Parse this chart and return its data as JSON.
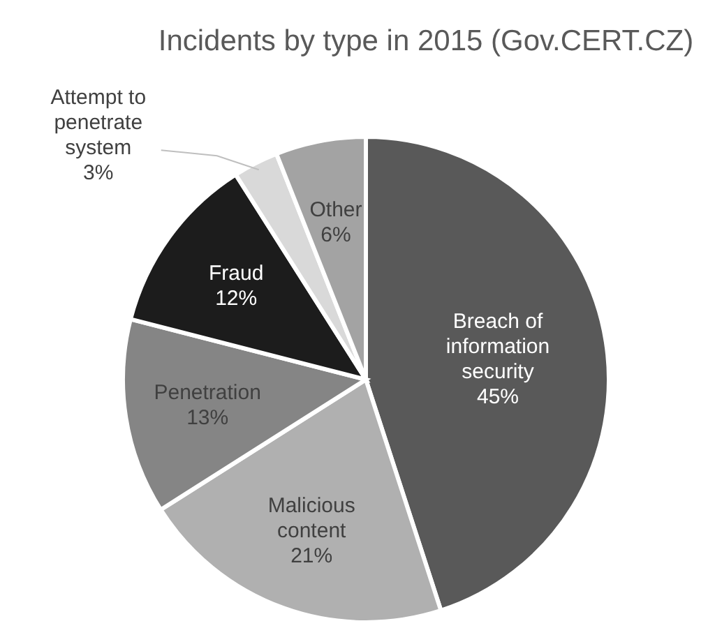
{
  "chart_data": {
    "type": "pie",
    "title": "Incidents by type in 2015 (Gov.CERT.CZ)",
    "categories": [
      "Breach of information security",
      "Malicious content",
      "Penetration",
      "Fraud",
      "Attempt to penetrate system",
      "Other"
    ],
    "values": [
      45,
      21,
      13,
      12,
      3,
      6
    ],
    "colors": [
      "#595959",
      "#b0b0b0",
      "#858585",
      "#1c1c1c",
      "#d9d9d9",
      "#a3a3a3"
    ],
    "value_labels": [
      "45%",
      "21%",
      "13%",
      "12%",
      "3%",
      "6%"
    ]
  }
}
